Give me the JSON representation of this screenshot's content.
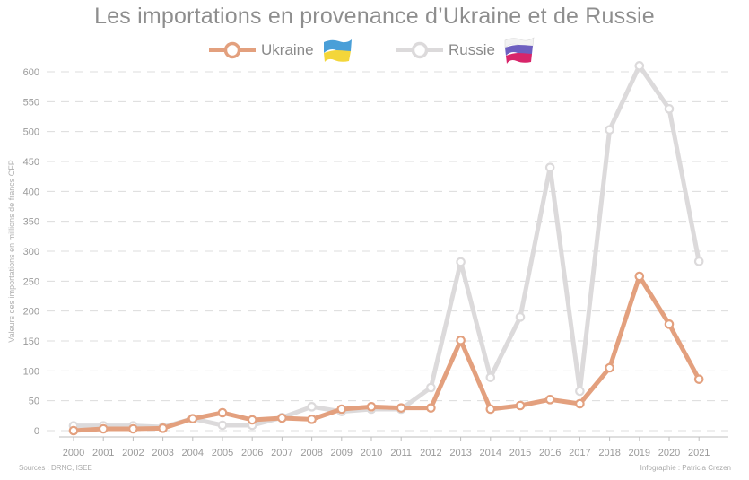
{
  "title": "Les importations en provenance d’Ukraine et de Russie",
  "legend": {
    "ukraine": "Ukraine",
    "russie": "Russie"
  },
  "footer": {
    "source": "Sources : DRNC, ISEE",
    "credit": "Infographie : Patricia Crezen"
  },
  "colors": {
    "ukraine": "#e3a07e",
    "russie": "#dcdadb",
    "grid": "#dcdcdc",
    "text": "#9a9a9a"
  },
  "chart_data": {
    "type": "line",
    "title": "Les importations en provenance d’Ukraine et de Russie",
    "xlabel": "",
    "ylabel": "Valeurs des importations en millions de francs CFP",
    "ylim": [
      0,
      600
    ],
    "yticks": [
      0,
      50,
      100,
      150,
      200,
      250,
      300,
      350,
      400,
      450,
      500,
      550,
      600
    ],
    "grid": true,
    "legend_position": "top-center",
    "categories": [
      "2000",
      "2001",
      "2002",
      "2003",
      "2004",
      "2005",
      "2006",
      "2007",
      "2008",
      "2009",
      "2010",
      "2011",
      "2012",
      "2013",
      "2014",
      "2015",
      "2016",
      "2017",
      "2018",
      "2019",
      "2020",
      "2021"
    ],
    "series": [
      {
        "name": "Russie",
        "values": [
          8,
          8,
          8,
          6,
          20,
          9,
          9,
          22,
          40,
          32,
          36,
          36,
          72,
          282,
          89,
          190,
          440,
          66,
          503,
          610,
          538,
          283
        ]
      },
      {
        "name": "Ukraine",
        "values": [
          0,
          3,
          3,
          4,
          20,
          30,
          18,
          21,
          19,
          36,
          40,
          38,
          38,
          151,
          36,
          42,
          52,
          45,
          105,
          258,
          178,
          86
        ]
      }
    ]
  }
}
